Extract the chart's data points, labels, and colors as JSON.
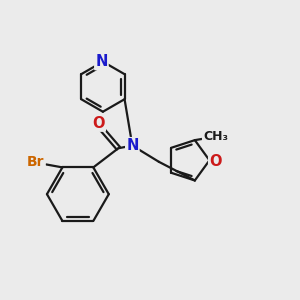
{
  "bg_color": "#ebebeb",
  "bond_color": "#1a1a1a",
  "dbo": 0.055,
  "atom_colors": {
    "N": "#1a1acc",
    "O": "#cc1a1a",
    "Br": "#cc6600",
    "C": "#1a1a1a"
  },
  "lw": 1.6,
  "fs": 10.5,
  "sfs": 9.5
}
